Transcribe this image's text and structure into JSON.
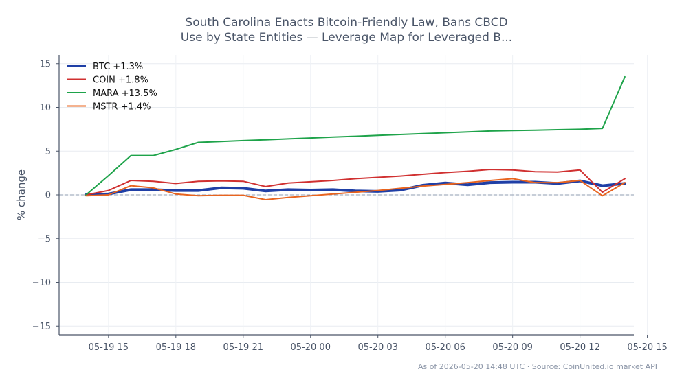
{
  "chart_data": {
    "type": "line",
    "title_lines": [
      "South Carolina Enacts Bitcoin-Friendly Law, Bans CBCD",
      "Use by State Entities — Leverage Map for Leveraged B..."
    ],
    "ylabel": "% change",
    "xlabel": "",
    "ylim": [
      -16,
      16
    ],
    "yticks": [
      -15,
      -10,
      -5,
      0,
      5,
      10,
      15
    ],
    "xlim": [
      -1.2,
      24.4
    ],
    "xticks": [
      {
        "x": 1,
        "label": "05-19 15"
      },
      {
        "x": 4,
        "label": "05-19 18"
      },
      {
        "x": 7,
        "label": "05-19 21"
      },
      {
        "x": 10,
        "label": "05-20 00"
      },
      {
        "x": 13,
        "label": "05-20 03"
      },
      {
        "x": 16,
        "label": "05-20 06"
      },
      {
        "x": 19,
        "label": "05-20 09"
      },
      {
        "x": 22,
        "label": "05-20 12"
      },
      {
        "x": 25,
        "label": "05-20 15"
      }
    ],
    "x": [
      0,
      1,
      2,
      3,
      4,
      5,
      6,
      7,
      8,
      9,
      10,
      11,
      12,
      13,
      14,
      15,
      16,
      17,
      18,
      19,
      20,
      21,
      22,
      23,
      24
    ],
    "baseline": 0,
    "grid": true,
    "legend_position": "top-left",
    "series": [
      {
        "name": "BTC +1.3%",
        "color": "#1f3fa6",
        "width": 4,
        "values": [
          0,
          0.1,
          0.6,
          0.6,
          0.5,
          0.5,
          0.8,
          0.75,
          0.45,
          0.6,
          0.55,
          0.6,
          0.45,
          0.4,
          0.55,
          1.1,
          1.35,
          1.15,
          1.4,
          1.45,
          1.45,
          1.3,
          1.6,
          1.05,
          1.3
        ]
      },
      {
        "name": "COIN +1.8%",
        "color": "#d03030",
        "width": 2,
        "values": [
          0,
          0.5,
          1.65,
          1.55,
          1.3,
          1.55,
          1.6,
          1.55,
          0.95,
          1.35,
          1.5,
          1.65,
          1.85,
          2.0,
          2.15,
          2.35,
          2.55,
          2.7,
          2.9,
          2.85,
          2.65,
          2.6,
          2.85,
          0.3,
          1.85
        ]
      },
      {
        "name": "MARA +13.5%",
        "color": "#1ea34a",
        "width": 2,
        "values": [
          0,
          2.2,
          4.5,
          4.5,
          5.2,
          6.0,
          6.1,
          6.2,
          6.3,
          6.4,
          6.5,
          6.6,
          6.7,
          6.8,
          6.9,
          7.0,
          7.1,
          7.2,
          7.3,
          7.35,
          7.4,
          7.45,
          7.5,
          7.6,
          13.5
        ]
      },
      {
        "name": "MSTR +1.4%",
        "color": "#e8641f",
        "width": 2,
        "values": [
          -0.1,
          0.0,
          1.05,
          0.8,
          0.1,
          -0.1,
          -0.05,
          -0.05,
          -0.55,
          -0.3,
          -0.1,
          0.1,
          0.3,
          0.5,
          0.75,
          1.0,
          1.2,
          1.4,
          1.65,
          1.85,
          1.4,
          1.4,
          1.65,
          -0.1,
          1.4
        ]
      }
    ]
  },
  "footer": "As of 2026-05-20 14:48 UTC · Source: CoinUnited.io market API"
}
